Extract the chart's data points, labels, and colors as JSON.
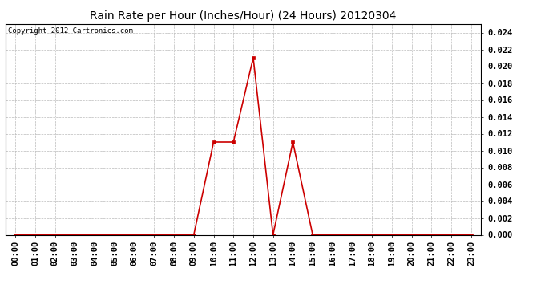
{
  "title": "Rain Rate per Hour (Inches/Hour) (24 Hours) 20120304",
  "copyright": "Copyright 2012 Cartronics.com",
  "line_color": "#cc0000",
  "background_color": "#ffffff",
  "plot_background": "#ffffff",
  "grid_color": "#bbbbbb",
  "x_labels": [
    "00:00",
    "01:00",
    "02:00",
    "03:00",
    "04:00",
    "05:00",
    "06:00",
    "07:00",
    "08:00",
    "09:00",
    "10:00",
    "11:00",
    "12:00",
    "13:00",
    "14:00",
    "15:00",
    "16:00",
    "17:00",
    "18:00",
    "19:00",
    "20:00",
    "21:00",
    "22:00",
    "23:00"
  ],
  "x_values": [
    0,
    1,
    2,
    3,
    4,
    5,
    6,
    7,
    8,
    9,
    10,
    11,
    12,
    13,
    14,
    15,
    16,
    17,
    18,
    19,
    20,
    21,
    22,
    23
  ],
  "y_values": [
    0,
    0,
    0,
    0,
    0,
    0,
    0,
    0,
    0,
    0,
    0.011,
    0.011,
    0.021,
    0.0,
    0.011,
    0.0,
    0,
    0,
    0,
    0,
    0,
    0,
    0,
    0
  ],
  "ylim": [
    0,
    0.025
  ],
  "yticks": [
    0.0,
    0.002,
    0.004,
    0.006,
    0.008,
    0.01,
    0.012,
    0.014,
    0.016,
    0.018,
    0.02,
    0.022,
    0.024
  ],
  "marker": "s",
  "marker_size": 2.5,
  "line_width": 1.2,
  "title_fontsize": 10,
  "tick_fontsize": 7.5,
  "copyright_fontsize": 6.5
}
